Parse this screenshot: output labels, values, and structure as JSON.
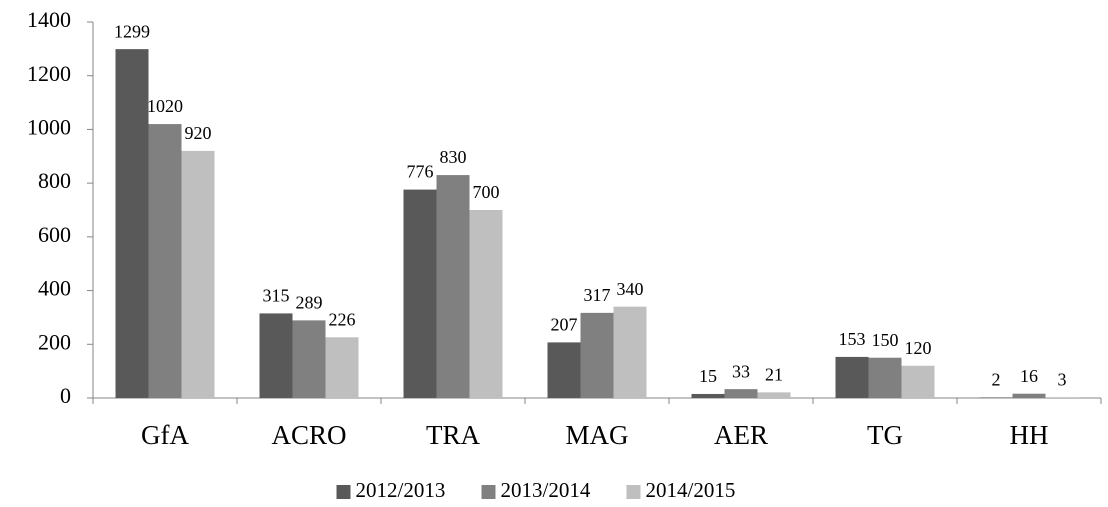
{
  "chart_data": {
    "type": "bar",
    "categories": [
      "GfA",
      "ACRO",
      "TRA",
      "MAG",
      "AER",
      "TG",
      "HH"
    ],
    "series": [
      {
        "name": "2012/2013",
        "color": "#595959",
        "values": [
          1299,
          315,
          776,
          207,
          15,
          153,
          2
        ]
      },
      {
        "name": "2013/2014",
        "color": "#808080",
        "values": [
          1020,
          289,
          830,
          317,
          33,
          150,
          16
        ]
      },
      {
        "name": "2014/2015",
        "color": "#bfbfbf",
        "values": [
          920,
          226,
          700,
          340,
          21,
          120,
          3
        ]
      }
    ],
    "ylim": [
      0,
      1400
    ],
    "yticks": [
      0,
      200,
      400,
      600,
      800,
      1000,
      1200,
      1400
    ],
    "legend": "bottom"
  }
}
